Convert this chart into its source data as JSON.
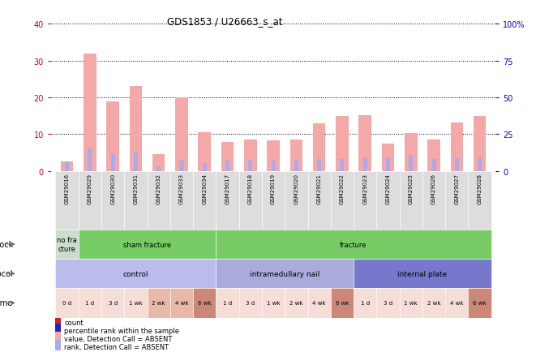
{
  "title": "GDS1853 / U26663_s_at",
  "samples": [
    "GSM29016",
    "GSM29029",
    "GSM29030",
    "GSM29031",
    "GSM29032",
    "GSM29033",
    "GSM29034",
    "GSM29017",
    "GSM29018",
    "GSM29019",
    "GSM29020",
    "GSM29021",
    "GSM29022",
    "GSM29023",
    "GSM29024",
    "GSM29025",
    "GSM29026",
    "GSM29027",
    "GSM29028"
  ],
  "bar_values": [
    2.5,
    32,
    19,
    23,
    4.5,
    20,
    10.5,
    7.8,
    8.5,
    8.2,
    8.5,
    13,
    15,
    15.2,
    7.5,
    10.2,
    8.5,
    13.2,
    15
  ],
  "rank_values": [
    6.5,
    15,
    12,
    12.5,
    3,
    7,
    5,
    7,
    7.5,
    7,
    7,
    8,
    8,
    9,
    9,
    11,
    8,
    8.5,
    9
  ],
  "bar_color": "#f4a9a8",
  "rank_color": "#aaaaee",
  "ylim_left": [
    0,
    40
  ],
  "ylim_right": [
    0,
    100
  ],
  "yticks_left": [
    0,
    10,
    20,
    30,
    40
  ],
  "yticks_right": [
    0,
    25,
    50,
    75,
    100
  ],
  "ytick_labels_right": [
    "0",
    "25",
    "50",
    "75",
    "100%"
  ],
  "shock_labels": [
    {
      "text": "no fra\ncture",
      "start": 0,
      "end": 1,
      "color": "#ccddcc"
    },
    {
      "text": "sham fracture",
      "start": 1,
      "end": 7,
      "color": "#77cc66"
    },
    {
      "text": "fracture",
      "start": 7,
      "end": 19,
      "color": "#77cc66"
    }
  ],
  "protocol_labels": [
    {
      "text": "control",
      "start": 0,
      "end": 7,
      "color": "#bbbbee"
    },
    {
      "text": "intramedullary nail",
      "start": 7,
      "end": 13,
      "color": "#aaaadd"
    },
    {
      "text": "internal plate",
      "start": 13,
      "end": 19,
      "color": "#7777cc"
    }
  ],
  "time_labels": [
    {
      "text": "0 d",
      "idx": 0,
      "color": "#f5ddd8"
    },
    {
      "text": "1 d",
      "idx": 1,
      "color": "#f5ddd8"
    },
    {
      "text": "3 d",
      "idx": 2,
      "color": "#f5ddd8"
    },
    {
      "text": "1 wk",
      "idx": 3,
      "color": "#f5ddd8"
    },
    {
      "text": "2 wk",
      "idx": 4,
      "color": "#e8b8a8"
    },
    {
      "text": "4 wk",
      "idx": 5,
      "color": "#e8b8a8"
    },
    {
      "text": "6 wk",
      "idx": 6,
      "color": "#cc8877"
    },
    {
      "text": "1 d",
      "idx": 7,
      "color": "#f5ddd8"
    },
    {
      "text": "3 d",
      "idx": 8,
      "color": "#f5ddd8"
    },
    {
      "text": "1 wk",
      "idx": 9,
      "color": "#f5ddd8"
    },
    {
      "text": "2 wk",
      "idx": 10,
      "color": "#f5ddd8"
    },
    {
      "text": "4 wk",
      "idx": 11,
      "color": "#f5ddd8"
    },
    {
      "text": "6 wk",
      "idx": 12,
      "color": "#cc8877"
    },
    {
      "text": "1 d",
      "idx": 13,
      "color": "#f5ddd8"
    },
    {
      "text": "3 d",
      "idx": 14,
      "color": "#f5ddd8"
    },
    {
      "text": "1 wk",
      "idx": 15,
      "color": "#f5ddd8"
    },
    {
      "text": "2 wk",
      "idx": 16,
      "color": "#f5ddd8"
    },
    {
      "text": "4 wk",
      "idx": 17,
      "color": "#f5ddd8"
    },
    {
      "text": "6 wk",
      "idx": 18,
      "color": "#cc8877"
    }
  ],
  "legend_items": [
    {
      "label": "count",
      "color": "#cc2222",
      "marker": "s"
    },
    {
      "label": "percentile rank within the sample",
      "color": "#2222cc",
      "marker": "s"
    },
    {
      "label": "value, Detection Call = ABSENT",
      "color": "#f4a9a8",
      "marker": "s"
    },
    {
      "label": "rank, Detection Call = ABSENT",
      "color": "#aaaaee",
      "marker": "s"
    }
  ],
  "bg_color": "#ffffff",
  "left_tick_color": "#cc0000",
  "right_tick_color": "#0000cc",
  "xticklabel_bg": "#dddddd"
}
